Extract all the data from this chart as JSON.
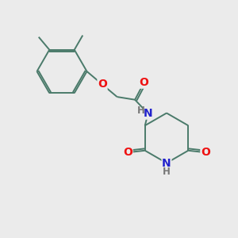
{
  "bg_color": "#ebebeb",
  "bond_color": "#4a7a6a",
  "atom_colors": {
    "O": "#ee1111",
    "N": "#2222cc",
    "H": "#777777"
  }
}
